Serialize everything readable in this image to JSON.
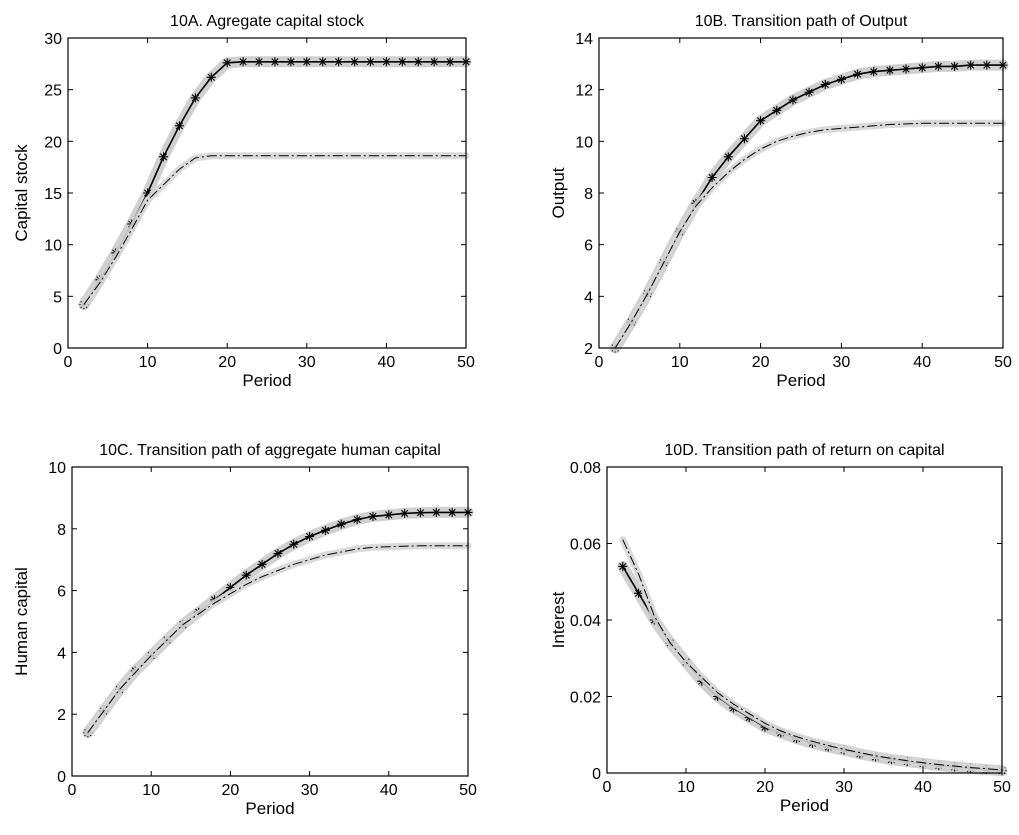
{
  "chart_data": [
    {
      "id": "A",
      "type": "line",
      "title": "10A. Agregate capital stock",
      "xlabel": "Period",
      "ylabel": "Capital stock",
      "xlim": [
        0,
        50
      ],
      "ylim": [
        0,
        30
      ],
      "xticks": [
        "0",
        "10",
        "20",
        "30",
        "40",
        "50"
      ],
      "yticks": [
        "0",
        "5",
        "10",
        "15",
        "20",
        "25",
        "30"
      ],
      "series": [
        {
          "style": "star",
          "x": [
            2,
            4,
            6,
            8,
            10,
            12,
            14,
            16,
            18,
            20,
            22,
            24,
            26,
            28,
            30,
            32,
            34,
            36,
            38,
            40,
            42,
            44,
            46,
            48,
            50
          ],
          "y": [
            4.2,
            6.6,
            9.2,
            12,
            15,
            18.5,
            21.5,
            24.2,
            26.2,
            27.6,
            27.7,
            27.7,
            27.7,
            27.7,
            27.7,
            27.7,
            27.7,
            27.7,
            27.7,
            27.7,
            27.7,
            27.7,
            27.7,
            27.7,
            27.7
          ]
        },
        {
          "style": "dashdot",
          "x": [
            2,
            4,
            6,
            8,
            10,
            12,
            14,
            16,
            18,
            20,
            25,
            30,
            35,
            40,
            45,
            50
          ],
          "y": [
            4.2,
            6.3,
            8.8,
            11.5,
            14.3,
            15.8,
            17.3,
            18.4,
            18.6,
            18.6,
            18.6,
            18.6,
            18.6,
            18.6,
            18.6,
            18.6
          ]
        }
      ]
    },
    {
      "id": "B",
      "type": "line",
      "title": "10B. Transition path of Output",
      "xlabel": "Period",
      "ylabel": "Output",
      "xlim": [
        0,
        50
      ],
      "ylim": [
        2,
        14
      ],
      "xticks": [
        "0",
        "10",
        "20",
        "30",
        "40",
        "50"
      ],
      "yticks": [
        "2",
        "4",
        "6",
        "8",
        "10",
        "12",
        "14"
      ],
      "series": [
        {
          "style": "star",
          "x": [
            2,
            4,
            6,
            8,
            10,
            12,
            14,
            16,
            18,
            20,
            22,
            24,
            26,
            28,
            30,
            32,
            34,
            36,
            38,
            40,
            42,
            44,
            46,
            48,
            50
          ],
          "y": [
            2.0,
            3.0,
            4.1,
            5.3,
            6.5,
            7.6,
            8.6,
            9.4,
            10.1,
            10.8,
            11.2,
            11.6,
            11.9,
            12.2,
            12.4,
            12.6,
            12.7,
            12.75,
            12.8,
            12.85,
            12.9,
            12.9,
            12.95,
            12.95,
            12.95
          ]
        },
        {
          "style": "dashdot",
          "x": [
            2,
            4,
            6,
            8,
            10,
            12,
            14,
            16,
            18,
            20,
            22,
            24,
            26,
            28,
            30,
            32,
            34,
            36,
            40,
            44,
            50
          ],
          "y": [
            2.0,
            3.0,
            4.1,
            5.3,
            6.5,
            7.5,
            8.2,
            8.8,
            9.3,
            9.7,
            10.0,
            10.2,
            10.35,
            10.45,
            10.5,
            10.55,
            10.6,
            10.65,
            10.7,
            10.7,
            10.7
          ]
        }
      ]
    },
    {
      "id": "C",
      "type": "line",
      "title": "10C. Transition path of aggregate human capital",
      "xlabel": "Period",
      "ylabel": "Human capital",
      "xlim": [
        0,
        50
      ],
      "ylim": [
        0,
        10
      ],
      "xticks": [
        "0",
        "10",
        "20",
        "30",
        "40",
        "50"
      ],
      "yticks": [
        "0",
        "2",
        "4",
        "6",
        "8",
        "10"
      ],
      "series": [
        {
          "style": "star",
          "x": [
            2,
            4,
            6,
            8,
            10,
            12,
            14,
            16,
            18,
            20,
            22,
            24,
            26,
            28,
            30,
            32,
            34,
            36,
            38,
            40,
            42,
            44,
            46,
            48,
            50
          ],
          "y": [
            1.4,
            2.1,
            2.8,
            3.4,
            3.9,
            4.4,
            4.9,
            5.3,
            5.7,
            6.1,
            6.5,
            6.85,
            7.2,
            7.5,
            7.75,
            7.95,
            8.15,
            8.3,
            8.4,
            8.45,
            8.5,
            8.52,
            8.53,
            8.53,
            8.53
          ]
        },
        {
          "style": "dashdot",
          "x": [
            2,
            6,
            10,
            14,
            18,
            20,
            22,
            24,
            26,
            28,
            30,
            32,
            34,
            36,
            38,
            40,
            44,
            50
          ],
          "y": [
            1.4,
            2.8,
            3.9,
            4.9,
            5.6,
            5.9,
            6.2,
            6.45,
            6.65,
            6.85,
            7.0,
            7.15,
            7.25,
            7.35,
            7.4,
            7.42,
            7.45,
            7.45
          ]
        }
      ]
    },
    {
      "id": "D",
      "type": "line",
      "title": "10D. Transition path of return on capital",
      "xlabel": "Period",
      "ylabel": "Interest",
      "xlim": [
        0,
        50
      ],
      "ylim": [
        0,
        0.08
      ],
      "xticks": [
        "0",
        "10",
        "20",
        "30",
        "40",
        "50"
      ],
      "yticks": [
        "0",
        "0.02",
        "0.04",
        "0.06",
        "0.08"
      ],
      "series": [
        {
          "style": "star",
          "x": [
            2,
            4,
            6,
            8,
            10,
            12,
            14,
            16,
            18,
            20,
            22,
            24,
            26,
            28,
            30,
            32,
            34,
            36,
            38,
            40,
            42,
            44,
            46,
            48,
            50
          ],
          "y": [
            0.054,
            0.047,
            0.04,
            0.034,
            0.029,
            0.024,
            0.02,
            0.017,
            0.0145,
            0.012,
            0.0105,
            0.009,
            0.0078,
            0.0068,
            0.006,
            0.005,
            0.0042,
            0.0035,
            0.003,
            0.0025,
            0.002,
            0.0016,
            0.0012,
            0.0009,
            0.0006
          ]
        },
        {
          "style": "dashdot",
          "x": [
            2,
            4,
            6,
            8,
            10,
            12,
            14,
            16,
            18,
            20,
            22,
            24,
            26,
            28,
            30,
            34,
            38,
            42,
            46,
            50
          ],
          "y": [
            0.061,
            0.052,
            0.041,
            0.034,
            0.029,
            0.025,
            0.021,
            0.018,
            0.0155,
            0.013,
            0.011,
            0.0095,
            0.0083,
            0.0072,
            0.0062,
            0.0045,
            0.0032,
            0.0022,
            0.0014,
            0.0008
          ]
        }
      ]
    }
  ]
}
